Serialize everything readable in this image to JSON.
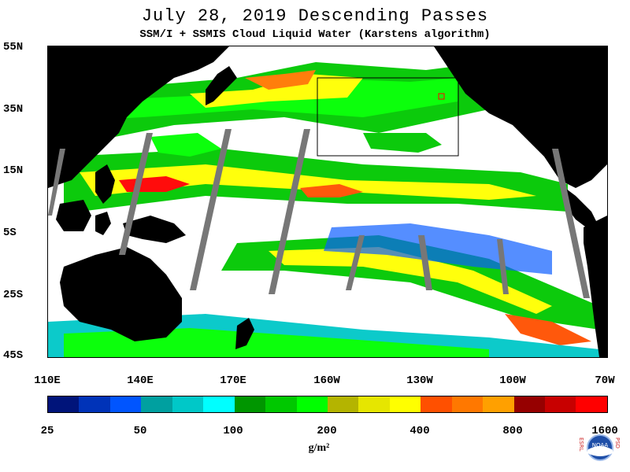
{
  "header": {
    "title": "July 28, 2019  Descending Passes",
    "subtitle": "SSM/I + SSMIS Cloud Liquid Water (Karstens algorithm)"
  },
  "map": {
    "lat_labels": [
      "55N",
      "35N",
      "15N",
      "5S",
      "25S",
      "45S"
    ],
    "lon_labels": [
      "110E",
      "140E",
      "170E",
      "160W",
      "130W",
      "100W",
      "70W"
    ]
  },
  "colorbar": {
    "labels": [
      "25",
      "50",
      "100",
      "200",
      "400",
      "800",
      "1600"
    ],
    "units": "g/m²",
    "colors": [
      "#00147a",
      "#0033b8",
      "#0055ff",
      "#00a0a0",
      "#00c8c8",
      "#00ffff",
      "#009600",
      "#00c800",
      "#00ff00",
      "#b4b400",
      "#e6e600",
      "#ffff00",
      "#ff5000",
      "#ff7800",
      "#ffa000",
      "#960000",
      "#c80000",
      "#ff0000"
    ]
  },
  "logo": {
    "left_letters": "ESRL",
    "right_letters": "PSD",
    "center_text": "NOAA"
  }
}
